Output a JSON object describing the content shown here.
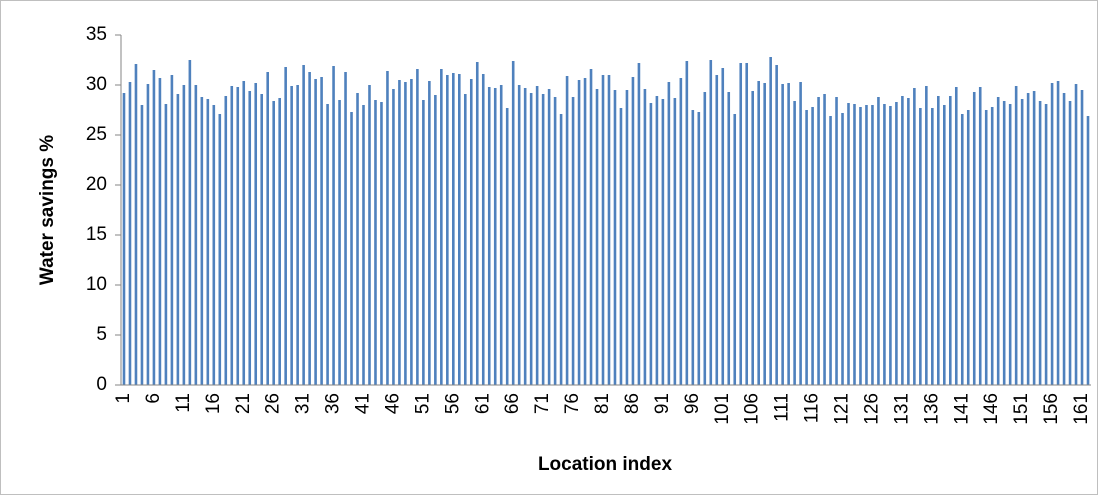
{
  "chart_data": {
    "type": "bar",
    "x_label": "Location index",
    "y_label": "Water savings %",
    "color": "#4f81bd",
    "ylim": [
      0,
      35
    ],
    "yticks": [
      0,
      5,
      10,
      15,
      20,
      25,
      30,
      35
    ],
    "grid": false,
    "categories": [
      "1",
      null,
      null,
      null,
      null,
      "6",
      null,
      null,
      null,
      null,
      "11",
      null,
      null,
      null,
      null,
      "16",
      null,
      null,
      null,
      null,
      "21",
      null,
      null,
      null,
      null,
      "26",
      null,
      null,
      null,
      null,
      "31",
      null,
      null,
      null,
      null,
      "36",
      null,
      null,
      null,
      null,
      "41",
      null,
      null,
      null,
      null,
      "46",
      null,
      null,
      null,
      null,
      "51",
      null,
      null,
      null,
      null,
      "56",
      null,
      null,
      null,
      null,
      "61",
      null,
      null,
      null,
      null,
      "66",
      null,
      null,
      null,
      null,
      "71",
      null,
      null,
      null,
      null,
      "76",
      null,
      null,
      null,
      null,
      "81",
      null,
      null,
      null,
      null,
      "86",
      null,
      null,
      null,
      null,
      "91",
      null,
      null,
      null,
      null,
      "96",
      null,
      null,
      null,
      null,
      "101",
      null,
      null,
      null,
      null,
      "106",
      null,
      null,
      null,
      null,
      "111",
      null,
      null,
      null,
      null,
      "116",
      null,
      null,
      null,
      null,
      "121",
      null,
      null,
      null,
      null,
      "126",
      null,
      null,
      null,
      null,
      "131",
      null,
      null,
      null,
      null,
      "136",
      null,
      null,
      null,
      null,
      "141",
      null,
      null,
      null,
      null,
      "146",
      null,
      null,
      null,
      null,
      "151",
      null,
      null,
      null,
      null,
      "156",
      null,
      null,
      null,
      null,
      "161",
      null
    ],
    "values": [
      29.2,
      30.3,
      32.1,
      28.0,
      30.1,
      31.5,
      30.7,
      28.1,
      31.0,
      29.1,
      30.0,
      32.5,
      30.0,
      28.8,
      28.6,
      28.0,
      27.1,
      28.9,
      29.9,
      29.8,
      30.4,
      29.4,
      30.2,
      29.1,
      31.3,
      28.4,
      28.7,
      31.8,
      29.9,
      30.0,
      32.0,
      31.3,
      30.6,
      30.8,
      28.1,
      31.9,
      28.5,
      31.3,
      27.3,
      29.2,
      28.0,
      30.0,
      28.5,
      28.3,
      31.4,
      29.6,
      30.5,
      30.3,
      30.6,
      31.6,
      28.5,
      30.4,
      29.0,
      31.6,
      31.0,
      31.2,
      31.1,
      29.1,
      30.6,
      32.3,
      31.1,
      29.8,
      29.7,
      30.0,
      27.7,
      32.4,
      30.0,
      29.7,
      29.2,
      29.9,
      29.1,
      29.6,
      28.8,
      27.1,
      30.9,
      28.8,
      30.5,
      30.7,
      31.6,
      29.6,
      31.0,
      31.0,
      29.5,
      27.7,
      29.5,
      30.8,
      32.2,
      29.6,
      28.2,
      28.9,
      28.6,
      30.3,
      28.7,
      30.7,
      32.4,
      27.5,
      27.3,
      29.3,
      32.5,
      31.0,
      31.7,
      29.3,
      27.1,
      32.2,
      32.2,
      29.4,
      30.4,
      30.2,
      32.8,
      32.0,
      30.1,
      30.2,
      28.4,
      30.3,
      27.5,
      27.8,
      28.8,
      29.1,
      26.9,
      28.8,
      27.2,
      28.2,
      28.1,
      27.8,
      28.0,
      28.0,
      28.8,
      28.1,
      27.9,
      28.3,
      28.9,
      28.7,
      29.7,
      27.7,
      29.9,
      27.7,
      28.9,
      28.0,
      28.9,
      29.8,
      27.1,
      27.5,
      29.3,
      29.8,
      27.5,
      27.8,
      28.8,
      28.4,
      28.1,
      29.9,
      28.6,
      29.2,
      29.4,
      28.4,
      28.1,
      30.2,
      30.4,
      29.2,
      28.4,
      30.1,
      29.5,
      26.9
    ]
  }
}
